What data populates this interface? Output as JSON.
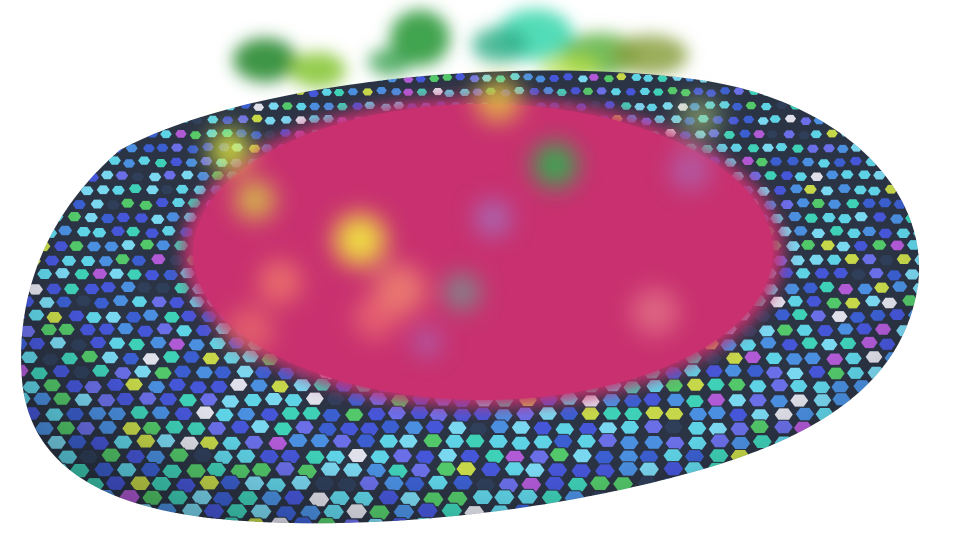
{
  "scene": {
    "background": "#ffffff",
    "disc_colors": [
      "#5fd3e6",
      "#4a8fe0",
      "#4656d8",
      "#3fd0b8",
      "#53c86a",
      "#b15ad6",
      "#e0e0ea",
      "#2f3f5a",
      "#7ad7f0",
      "#3b5fd0",
      "#c6d84a",
      "#6a6fe8"
    ],
    "grout_color": "#2b3445",
    "center_fill": "#c8306f",
    "blob_colors": [
      "#2f9a3a",
      "#7fd63a",
      "#40e0c0",
      "#7a9a3a",
      "#e0e040",
      "#f07a6a",
      "#3ec05a",
      "#a080d0"
    ]
  }
}
